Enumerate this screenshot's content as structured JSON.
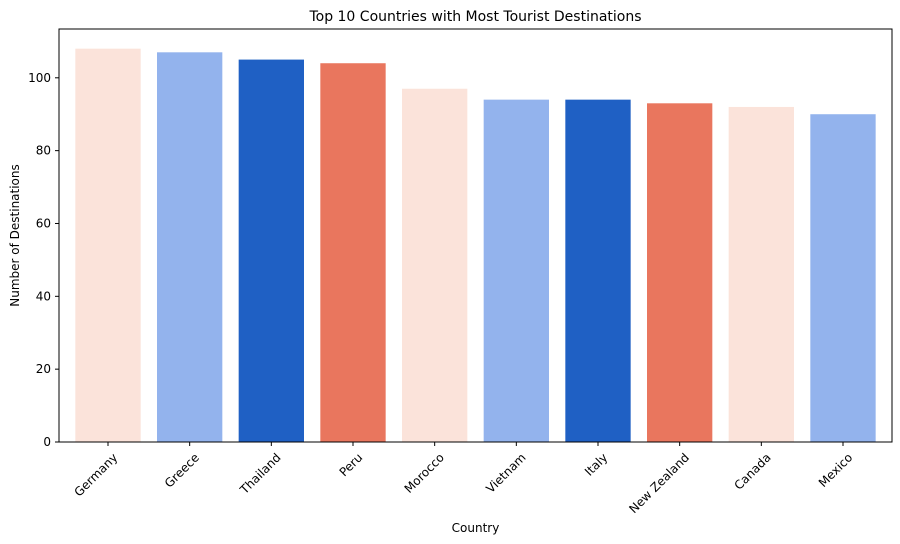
{
  "chart_data": {
    "type": "bar",
    "title": "Top 10 Countries with Most Tourist Destinations",
    "xlabel": "Country",
    "ylabel": "Number of Destinations",
    "categories": [
      "Germany",
      "Greece",
      "Thailand",
      "Peru",
      "Morocco",
      "Vietnam",
      "Italy",
      "New Zealand",
      "Canada",
      "Mexico"
    ],
    "values": [
      108,
      107,
      105,
      104,
      97,
      94,
      94,
      93,
      92,
      90
    ],
    "colors": [
      "#fbe3da",
      "#93b3ed",
      "#1f60c4",
      "#e9765e",
      "#fbe3da",
      "#93b3ed",
      "#1f60c4",
      "#e9765e",
      "#fbe3da",
      "#93b3ed"
    ],
    "ylim": [
      0,
      113.4
    ],
    "yticks": [
      0,
      20,
      40,
      60,
      80,
      100
    ],
    "grid": false,
    "xtick_rotation": -45
  }
}
